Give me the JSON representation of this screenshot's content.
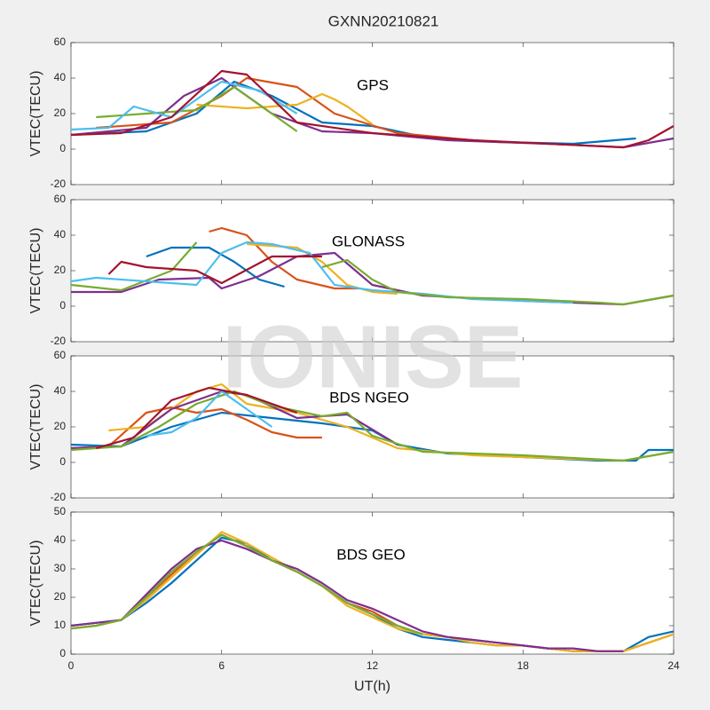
{
  "title": "GXNN20210821",
  "watermark": "IONISE",
  "chart_data": [
    {
      "type": "line",
      "annotation": "GPS",
      "ylabel": "VTEC(TECU)",
      "xlim": [
        0,
        24
      ],
      "xticks": [
        0,
        6,
        12,
        18,
        24
      ],
      "ylim": [
        -20,
        60
      ],
      "yticks": [
        -20,
        0,
        20,
        40,
        60
      ],
      "series": [
        {
          "color": "#0072bd",
          "x": [
            0,
            3,
            5,
            6.5,
            8,
            10,
            12,
            14,
            17,
            20,
            22.5
          ],
          "values": [
            8,
            10,
            20,
            38,
            30,
            15,
            13,
            7,
            4,
            3,
            6
          ]
        },
        {
          "color": "#d95319",
          "x": [
            1,
            4,
            6,
            7,
            9,
            10.5,
            13,
            16
          ],
          "values": [
            12,
            15,
            30,
            40,
            35,
            20,
            9,
            5
          ]
        },
        {
          "color": "#edb120",
          "x": [
            5,
            7,
            9,
            10,
            10.5,
            11,
            12
          ],
          "values": [
            25,
            23,
            25,
            31,
            28,
            24,
            14
          ]
        },
        {
          "color": "#7e2f8e",
          "x": [
            0,
            3,
            4.5,
            6,
            8,
            10,
            12,
            15,
            19,
            22,
            24
          ],
          "values": [
            8,
            12,
            30,
            40,
            20,
            10,
            9,
            5,
            3,
            1,
            6
          ]
        },
        {
          "color": "#77ac30",
          "x": [
            1,
            3,
            5,
            6.5,
            8,
            9
          ],
          "values": [
            18,
            20,
            22,
            35,
            20,
            10
          ]
        },
        {
          "color": "#4dbeee",
          "x": [
            0,
            1.5,
            2.5,
            4,
            6,
            7.5,
            9
          ],
          "values": [
            11,
            12,
            24,
            18,
            38,
            33,
            20
          ]
        },
        {
          "color": "#a2142f",
          "x": [
            0,
            2,
            4,
            6,
            7,
            9,
            12,
            16,
            19,
            22,
            23,
            24
          ],
          "values": [
            8,
            9,
            18,
            44,
            42,
            15,
            9,
            5,
            3,
            1,
            5,
            13
          ]
        }
      ]
    },
    {
      "type": "line",
      "annotation": "GLONASS",
      "ylabel": "VTEC(TECU)",
      "xlim": [
        0,
        24
      ],
      "xticks": [
        0,
        6,
        12,
        18,
        24
      ],
      "ylim": [
        -20,
        60
      ],
      "yticks": [
        -20,
        0,
        20,
        40,
        60
      ],
      "series": [
        {
          "color": "#0072bd",
          "x": [
            3,
            4,
            5.5,
            6.5,
            7.5,
            8.5
          ],
          "values": [
            28,
            33,
            33,
            25,
            15,
            11
          ]
        },
        {
          "color": "#d95319",
          "x": [
            5.5,
            6,
            7,
            8,
            9,
            10.5,
            11.5
          ],
          "values": [
            42,
            44,
            40,
            25,
            15,
            10,
            10
          ]
        },
        {
          "color": "#edb120",
          "x": [
            7,
            9,
            10,
            11,
            12,
            13
          ],
          "values": [
            35,
            33,
            25,
            12,
            8,
            7
          ]
        },
        {
          "color": "#7e2f8e",
          "x": [
            0,
            2,
            3.5,
            5.5,
            6,
            7.5,
            9,
            10.5,
            12,
            14,
            18,
            22,
            24
          ],
          "values": [
            8,
            8,
            15,
            16,
            10,
            17,
            28,
            30,
            12,
            6,
            3,
            1,
            6
          ]
        },
        {
          "color": "#77ac30",
          "x": [
            0,
            2,
            4,
            5
          ],
          "values": [
            12,
            9,
            20,
            36
          ]
        },
        {
          "color": "#4dbeee",
          "x": [
            0,
            1,
            3,
            5,
            6,
            7,
            8,
            9.5,
            10.5,
            12,
            14,
            16,
            18,
            20
          ],
          "values": [
            14,
            16,
            14,
            12,
            30,
            36,
            35,
            30,
            12,
            9,
            7,
            4,
            3,
            2
          ]
        },
        {
          "color": "#a2142f",
          "x": [
            1.5,
            2,
            3,
            5,
            6,
            8,
            10
          ],
          "values": [
            18,
            25,
            22,
            20,
            13,
            28,
            28
          ]
        },
        {
          "color": "#77ac30",
          "x": [
            10,
            11,
            12,
            13,
            15,
            18,
            21,
            22,
            24
          ],
          "values": [
            22,
            26,
            15,
            8,
            5,
            4,
            2,
            1,
            6
          ]
        }
      ]
    },
    {
      "type": "line",
      "annotation": "BDS NGEO",
      "ylabel": "VTEC(TECU)",
      "xlim": [
        0,
        24
      ],
      "xticks": [
        0,
        6,
        12,
        18,
        24
      ],
      "ylim": [
        -20,
        60
      ],
      "yticks": [
        -20,
        0,
        20,
        40,
        60
      ],
      "series": [
        {
          "color": "#0072bd",
          "x": [
            0,
            2,
            4,
            6,
            8,
            10,
            12,
            13,
            15,
            18,
            21,
            22.5,
            23,
            24
          ],
          "values": [
            10,
            9,
            20,
            28,
            25,
            22,
            18,
            10,
            5,
            3,
            1,
            1,
            7,
            7
          ]
        },
        {
          "color": "#d95319",
          "x": [
            0,
            1.5,
            3,
            4,
            5,
            6,
            7,
            8,
            9,
            10
          ],
          "values": [
            8,
            9,
            28,
            31,
            28,
            30,
            24,
            17,
            14,
            14
          ]
        },
        {
          "color": "#edb120",
          "x": [
            1.5,
            3,
            5,
            6,
            7,
            9,
            11,
            13,
            16,
            20,
            22,
            24
          ],
          "values": [
            18,
            20,
            40,
            44,
            33,
            28,
            20,
            8,
            4,
            2,
            1,
            6
          ]
        },
        {
          "color": "#7e2f8e",
          "x": [
            0,
            2,
            4,
            6,
            7,
            9,
            11,
            13
          ],
          "values": [
            8,
            9,
            30,
            40,
            38,
            25,
            27,
            10
          ]
        },
        {
          "color": "#77ac30",
          "x": [
            0,
            2,
            3.5,
            5,
            6.5,
            8,
            10,
            11,
            12,
            14,
            18,
            22,
            24
          ],
          "values": [
            7,
            9,
            20,
            33,
            40,
            32,
            26,
            28,
            15,
            6,
            4,
            1,
            6
          ]
        },
        {
          "color": "#4dbeee",
          "x": [
            3,
            4,
            5,
            6,
            7,
            8
          ],
          "values": [
            15,
            17,
            25,
            40,
            30,
            20
          ]
        },
        {
          "color": "#a2142f",
          "x": [
            1,
            2.5,
            4,
            5.5,
            7,
            9
          ],
          "values": [
            8,
            14,
            35,
            42,
            38,
            28
          ]
        }
      ]
    },
    {
      "type": "line",
      "annotation": "BDS GEO",
      "ylabel": "VTEC(TECU)",
      "xlabel": "UT(h)",
      "xticklabels": true,
      "xlim": [
        0,
        24
      ],
      "xticks": [
        0,
        6,
        12,
        18,
        24
      ],
      "ylim": [
        0,
        50
      ],
      "yticks": [
        0,
        10,
        20,
        30,
        40,
        50
      ],
      "series": [
        {
          "color": "#0072bd",
          "x": [
            0,
            1,
            2,
            3,
            4,
            5,
            6,
            7,
            8,
            9,
            10,
            11,
            12,
            13,
            14,
            15,
            16,
            17,
            18,
            19,
            20,
            21,
            22,
            23,
            24
          ],
          "values": [
            10,
            11,
            12,
            18,
            25,
            33,
            41,
            39,
            33,
            29,
            24,
            18,
            14,
            9,
            6,
            5,
            4,
            3,
            3,
            2,
            1,
            1,
            1,
            6,
            8
          ]
        },
        {
          "color": "#d95319",
          "x": [
            0,
            1,
            2,
            3,
            4,
            5,
            6,
            7,
            8,
            9,
            10,
            11,
            12,
            13,
            14,
            15,
            16,
            17,
            18,
            19,
            20,
            21,
            22,
            23,
            24
          ],
          "values": [
            9,
            10,
            12,
            20,
            28,
            36,
            42,
            38,
            33,
            29,
            24,
            18,
            15,
            10,
            7,
            6,
            5,
            4,
            3,
            2,
            1,
            1,
            1,
            4,
            7
          ]
        },
        {
          "color": "#edb120",
          "x": [
            0,
            1,
            2,
            3,
            4,
            5,
            6,
            7,
            8,
            9,
            10,
            11,
            12,
            13,
            14,
            15,
            16,
            17,
            18,
            19,
            20,
            21,
            22,
            23,
            24
          ],
          "values": [
            9,
            10,
            12,
            19,
            27,
            35,
            43,
            39,
            34,
            29,
            24,
            17,
            13,
            9,
            7,
            6,
            4,
            3,
            3,
            2,
            1,
            1,
            1,
            4,
            7
          ]
        },
        {
          "color": "#7e2f8e",
          "x": [
            0,
            1,
            2,
            3,
            4,
            5,
            6,
            7,
            8,
            9,
            10,
            11,
            12,
            13,
            14,
            15,
            16,
            17,
            18,
            19,
            20,
            21,
            22
          ],
          "values": [
            10,
            11,
            12,
            21,
            30,
            37,
            40,
            37,
            33,
            30,
            25,
            19,
            16,
            12,
            8,
            6,
            5,
            4,
            3,
            2,
            2,
            1,
            1
          ]
        },
        {
          "color": "#77ac30",
          "x": [
            0,
            1,
            2,
            3,
            4,
            5,
            6,
            7,
            8,
            9,
            10,
            11,
            12,
            13,
            14
          ],
          "values": [
            9,
            10,
            12,
            20,
            29,
            36,
            42,
            38,
            33,
            29,
            24,
            18,
            14,
            10,
            7
          ]
        }
      ]
    }
  ]
}
